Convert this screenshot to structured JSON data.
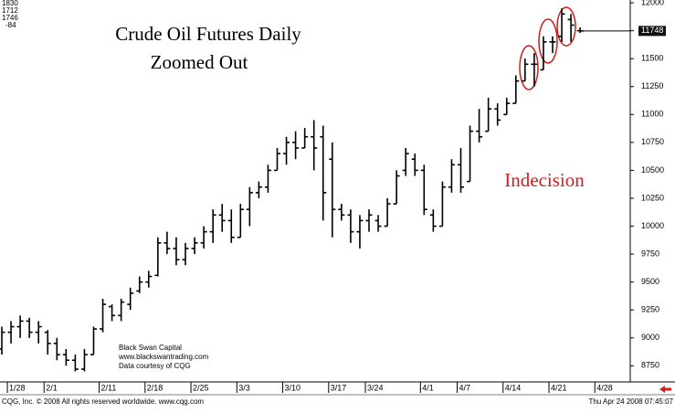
{
  "chart_data": {
    "type": "ohlc",
    "title": "Crude Oil Futures Daily",
    "subtitle": "Zoomed Out",
    "annotation": "Indecision",
    "quote": [
      "1830",
      "1712",
      "1746",
      "-84"
    ],
    "credits": [
      "Black Swan Capital",
      "www.blackswantrading.com",
      "Data courtesy of CQG"
    ],
    "footer_left": "CQG, Inc. © 2008 All rights reserved worldwide. www.cqg.com",
    "footer_right": "Thu Apr 24 2008 07:45:07",
    "last_price": 11748,
    "color": "#000000",
    "categories": [
      null,
      "1/28",
      null,
      null,
      null,
      "2/1",
      null,
      null,
      null,
      null,
      null,
      "2/11",
      null,
      null,
      null,
      null,
      "2/18",
      null,
      null,
      null,
      null,
      "2/25",
      null,
      null,
      null,
      null,
      "3/3",
      null,
      null,
      null,
      null,
      "3/10",
      null,
      null,
      null,
      null,
      "3/17",
      null,
      null,
      null,
      "3/24",
      null,
      null,
      null,
      null,
      null,
      "4/1",
      null,
      null,
      null,
      "4/7",
      null,
      null,
      null,
      null,
      "4/14",
      null,
      null,
      null,
      null,
      "4/21",
      null,
      null,
      null,
      null,
      "4/28"
    ],
    "open": [
      8900,
      9050,
      9100,
      9150,
      9050,
      9050,
      8950,
      8850,
      8800,
      8720,
      8850,
      9080,
      9280,
      9200,
      9300,
      9420,
      9500,
      9560,
      9850,
      9800,
      9700,
      9800,
      9850,
      9950,
      10100,
      10050,
      9900,
      10150,
      10300,
      10350,
      10500,
      10650,
      10750,
      10700,
      10800,
      10800,
      10600,
      10150,
      10100,
      9950,
      10050,
      10050,
      10000,
      10200,
      10500,
      10600,
      10500,
      10100,
      10000,
      10350,
      10550,
      10400,
      10850,
      10850,
      11050,
      11000,
      11100,
      11300,
      11450,
      11400,
      11650,
      11700,
      11850,
      11750,
      null,
      null
    ],
    "high": [
      9100,
      9150,
      9200,
      9180,
      9150,
      9070,
      9000,
      8900,
      8850,
      8900,
      9100,
      9350,
      9300,
      9350,
      9450,
      9550,
      9600,
      9900,
      9950,
      9900,
      9850,
      9900,
      10000,
      10150,
      10200,
      10150,
      10200,
      10350,
      10400,
      10550,
      10700,
      10800,
      10850,
      10880,
      10950,
      10900,
      10750,
      10200,
      10150,
      10100,
      10150,
      10100,
      10250,
      10500,
      10700,
      10650,
      10550,
      10150,
      10400,
      10600,
      10700,
      10900,
      11050,
      11150,
      11100,
      11150,
      11350,
      11500,
      11550,
      11700,
      11700,
      11950,
      11900,
      11780,
      null,
      null
    ],
    "low": [
      8850,
      8950,
      9000,
      9000,
      8950,
      8850,
      8800,
      8750,
      8700,
      8700,
      8850,
      9050,
      9150,
      9150,
      9250,
      9400,
      9450,
      9550,
      9750,
      9650,
      9650,
      9750,
      9800,
      9850,
      9950,
      9850,
      9900,
      10000,
      10250,
      10300,
      10500,
      10550,
      10600,
      10700,
      10500,
      10050,
      9900,
      10050,
      9850,
      9800,
      9950,
      9950,
      10000,
      10200,
      10450,
      10450,
      10100,
      9950,
      10000,
      10300,
      10300,
      10400,
      10750,
      10850,
      10900,
      11000,
      11100,
      11300,
      11250,
      11400,
      11550,
      11650,
      11650,
      11730,
      null,
      null
    ],
    "close": [
      9050,
      9100,
      9150,
      9050,
      9100,
      8950,
      8850,
      8800,
      8720,
      8850,
      9080,
      9300,
      9200,
      9320,
      9400,
      9500,
      9550,
      9850,
      9800,
      9700,
      9800,
      9850,
      9950,
      10100,
      10050,
      9900,
      10150,
      10300,
      10350,
      10500,
      10650,
      10750,
      10700,
      10800,
      10700,
      10300,
      10150,
      10100,
      9950,
      10050,
      10100,
      10000,
      10200,
      10450,
      10650,
      10500,
      10150,
      10000,
      10350,
      10550,
      10350,
      10850,
      10800,
      11050,
      10950,
      11100,
      11300,
      11450,
      11450,
      11650,
      11650,
      11900,
      11800,
      11748,
      null,
      null
    ],
    "ylim": [
      8675,
      12025
    ],
    "yticks": [
      12000,
      11750,
      11500,
      11250,
      11000,
      10750,
      10500,
      10250,
      10000,
      9750,
      9500,
      9250,
      9000,
      8750
    ]
  }
}
